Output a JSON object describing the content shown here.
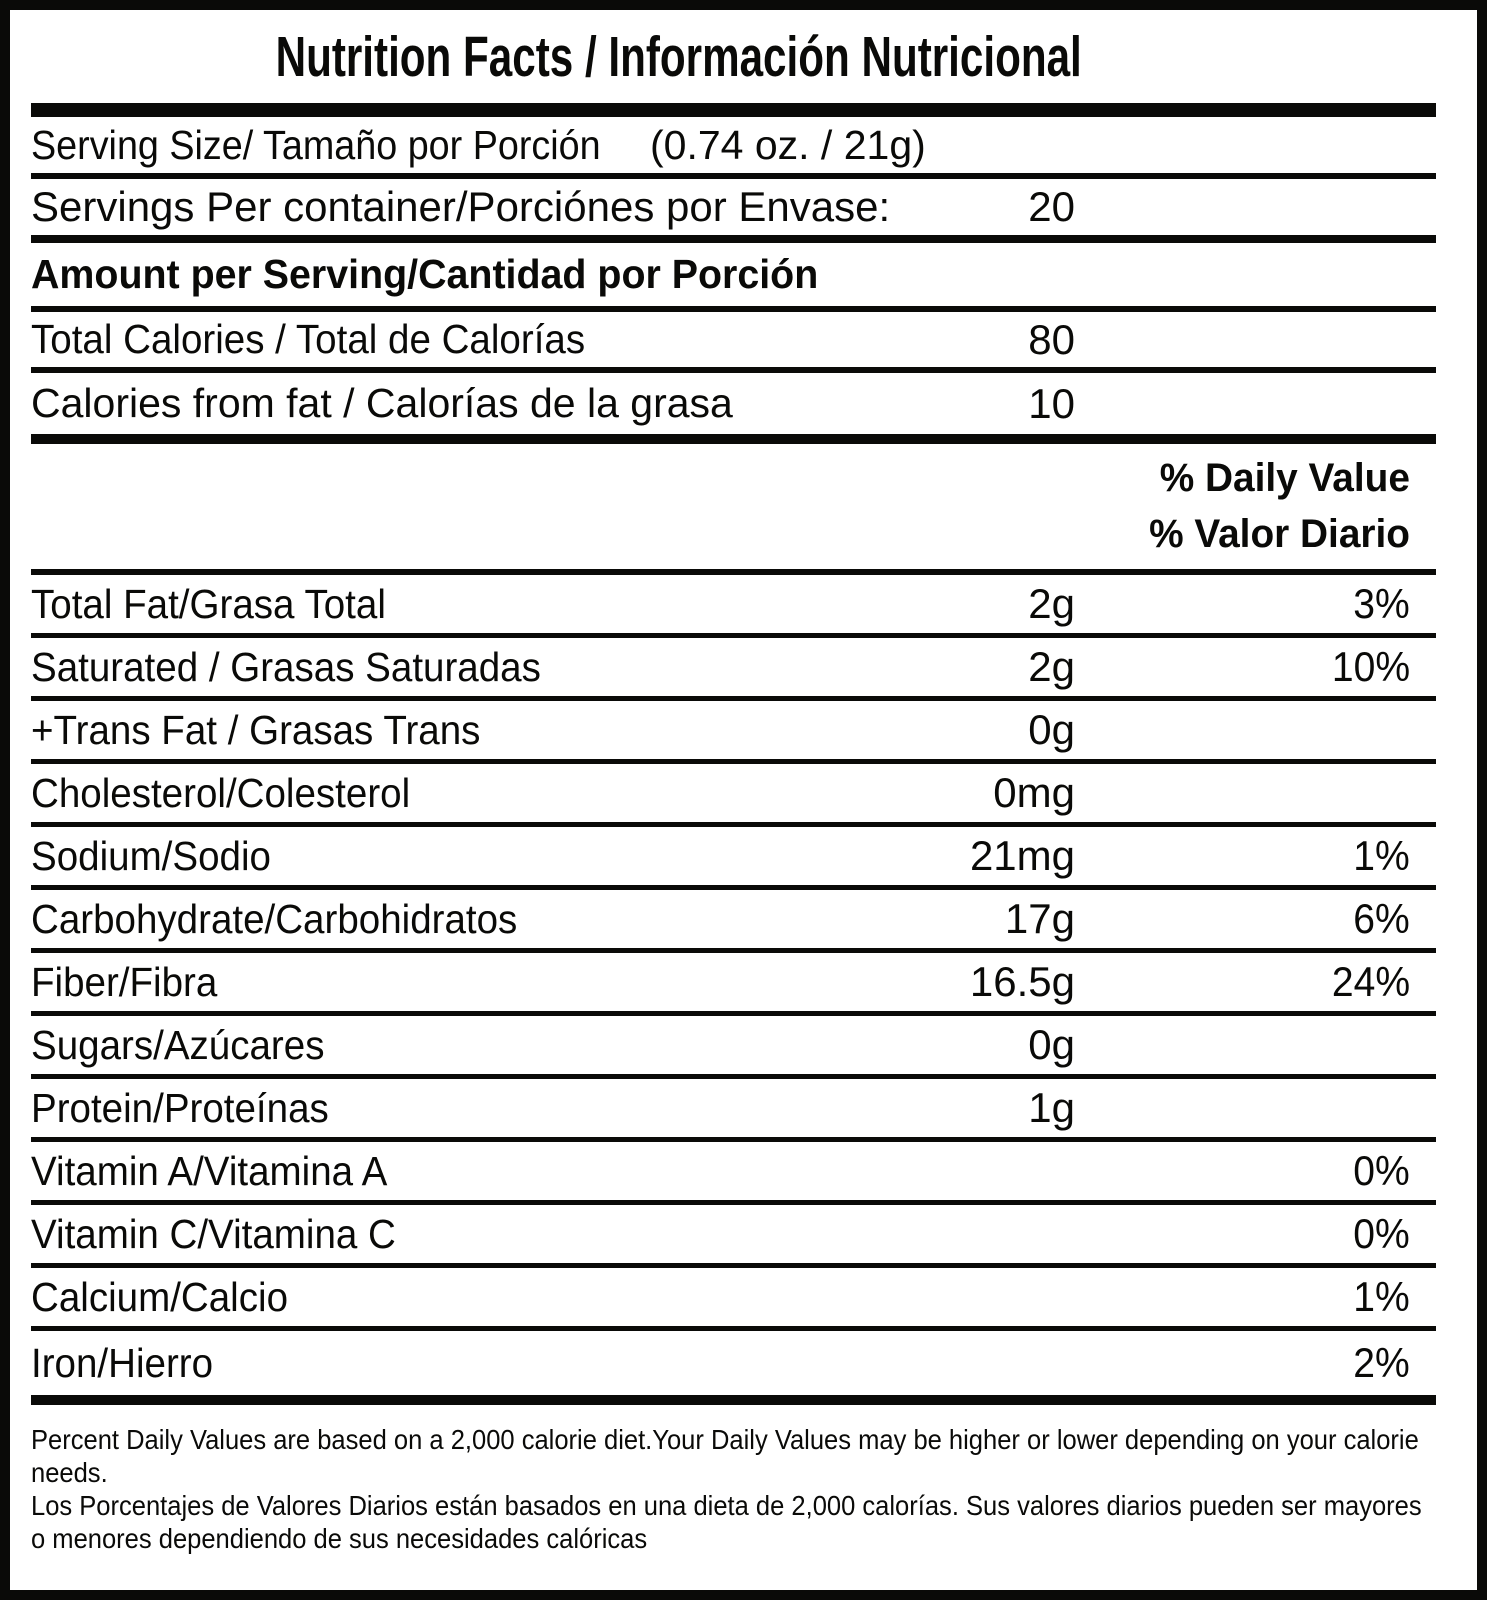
{
  "title": "Nutrition Facts / Información Nutricional",
  "serving": {
    "size_label": "Serving Size/ Tamaño por Porción",
    "size_value": "(0.74 oz. / 21g)",
    "per_container_label": "Servings Per container/Porciónes por Envase:",
    "per_container_value": "20"
  },
  "amount_header": "Amount per Serving/Cantidad por Porción",
  "calories": [
    {
      "label": "Total Calories / Total de Calorías",
      "value": "80"
    },
    {
      "label": "Calories from fat / Calorías de la grasa",
      "value": "10"
    }
  ],
  "daily_value_header": {
    "en": "% Daily Value",
    "es": "% Valor Diario"
  },
  "nutrients": [
    {
      "label": "Total Fat/Grasa Total",
      "amount": "2g",
      "dv": "3%"
    },
    {
      "label": "Saturated / Grasas Saturadas",
      "amount": "2g",
      "dv": "10%"
    },
    {
      "label": "+Trans Fat / Grasas Trans",
      "amount": "0g",
      "dv": ""
    },
    {
      "label": "Cholesterol/Colesterol",
      "amount": "0mg",
      "dv": ""
    },
    {
      "label": "Sodium/Sodio",
      "amount": "21mg",
      "dv": "1%"
    },
    {
      "label": "Carbohydrate/Carbohidratos",
      "amount": "17g",
      "dv": "6%"
    },
    {
      "label": "Fiber/Fibra",
      "amount": "16.5g",
      "dv": "24%"
    },
    {
      "label": "Sugars/Azúcares",
      "amount": "0g",
      "dv": ""
    },
    {
      "label": "Protein/Proteínas",
      "amount": "1g",
      "dv": ""
    },
    {
      "label": "Vitamin A/Vitamina A",
      "amount": "",
      "dv": "0%"
    },
    {
      "label": "Vitamin C/Vitamina C",
      "amount": "",
      "dv": "0%"
    },
    {
      "label": "Calcium/Calcio",
      "amount": "",
      "dv": "1%"
    },
    {
      "label": "Iron/Hierro",
      "amount": "",
      "dv": "2%"
    }
  ],
  "footnote": {
    "en": "Percent Daily Values are based on a 2,000 calorie diet.Your Daily Values may be higher or lower depending on your calorie needs.",
    "es": "Los Porcentajes de Valores Diarios están basados en una dieta de 2,000 calorías. Sus valores diarios pueden ser mayores o menores dependiendo de sus necesidades calóricas"
  }
}
